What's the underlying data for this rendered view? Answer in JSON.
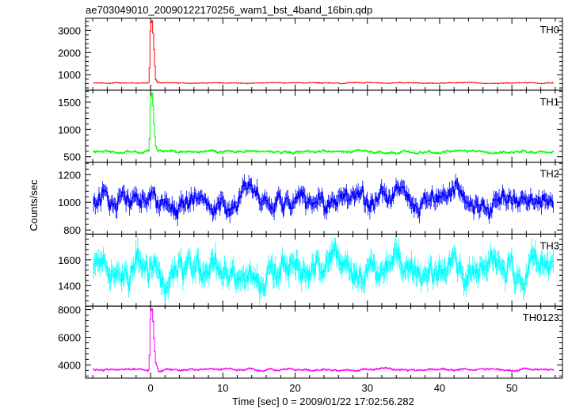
{
  "chart_data": {
    "type": "line",
    "title": "ae703049010_20090122170256_wam1_bst_4band_16bin.qdp",
    "xlabel": "Time [sec] 0 = 2009/01/22 17:02:56.282",
    "ylabel": "Counts/sec",
    "xlim": [
      -9,
      57
    ],
    "x_ticks": [
      0,
      10,
      20,
      30,
      40,
      50
    ],
    "grid": false,
    "panels": [
      {
        "name": "TH0",
        "color": "#ff0000",
        "ylim": [
          300,
          3550
        ],
        "y_ticks": [
          1000,
          2000,
          3000
        ],
        "baseline": 630,
        "noise": 28,
        "burst": [
          [
            -0.2,
            630
          ],
          [
            0.0,
            3300
          ],
          [
            0.25,
            3450
          ],
          [
            0.5,
            2000
          ],
          [
            0.7,
            800
          ],
          [
            1.0,
            640
          ]
        ]
      },
      {
        "name": "TH1",
        "color": "#00ff00",
        "ylim": [
          400,
          1720
        ],
        "y_ticks": [
          500,
          1000,
          1500
        ],
        "baseline": 590,
        "noise": 32,
        "burst": [
          [
            -0.2,
            590
          ],
          [
            0.0,
            1550
          ],
          [
            0.25,
            1680
          ],
          [
            0.5,
            1050
          ],
          [
            0.7,
            700
          ],
          [
            1.0,
            600
          ]
        ]
      },
      {
        "name": "TH2",
        "color": "#0000ff",
        "ylim": [
          770,
          1290
        ],
        "y_ticks": [
          800,
          1000,
          1200
        ],
        "baseline": 1010,
        "noise": 95,
        "burst": []
      },
      {
        "name": "TH3",
        "color": "#00ffff",
        "ylim": [
          1240,
          1800
        ],
        "y_ticks": [
          1400,
          1600
        ],
        "baseline": 1520,
        "noise": 140,
        "burst": []
      },
      {
        "name": "TH0123",
        "color": "#ff00ff",
        "ylim": [
          3050,
          8250
        ],
        "y_ticks": [
          4000,
          6000,
          8000
        ],
        "baseline": 3650,
        "noise": 110,
        "burst": [
          [
            -0.2,
            3650
          ],
          [
            0.0,
            7800
          ],
          [
            0.25,
            8100
          ],
          [
            0.5,
            5700
          ],
          [
            0.7,
            4200
          ],
          [
            1.0,
            3700
          ]
        ]
      }
    ],
    "x_range_data": [
      -7.9,
      55.8
    ]
  }
}
